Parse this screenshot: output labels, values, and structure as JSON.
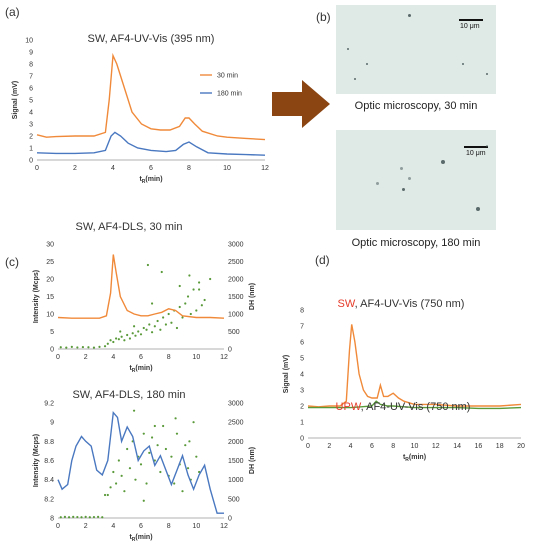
{
  "labels": {
    "a": "(a)",
    "b": "(b)",
    "c": "(c)",
    "d": "(d)"
  },
  "micro": {
    "caption30": "Optic microscopy, 30 min",
    "caption180": "Optic microscopy, 180 min",
    "scale": "10 μm"
  },
  "colors": {
    "orange": "#f08a3a",
    "blue": "#4a78c0",
    "green": "#5a9a3a",
    "red": "#e53b2a",
    "arrow": "#8b4513"
  },
  "chart_data": [
    {
      "id": "a",
      "type": "line",
      "title": "SW,  AF4-UV-Vis (395 nm)",
      "xlabel": "tR(min)",
      "ylabel": "Signal (mV)",
      "xlim": [
        0,
        12
      ],
      "ylim": [
        0,
        10
      ],
      "xticks": [
        0,
        2,
        4,
        6,
        8,
        10,
        12
      ],
      "yticks": [
        0,
        1,
        2,
        3,
        4,
        5,
        6,
        7,
        8,
        9,
        10
      ],
      "legend": "right",
      "series": [
        {
          "name": "30 min",
          "color": "#f08a3a",
          "x": [
            0,
            0.5,
            1,
            2,
            3,
            3.6,
            3.8,
            4.0,
            4.2,
            4.5,
            5.0,
            5.5,
            6,
            6.5,
            7,
            7.5,
            7.8,
            8.0,
            8.3,
            8.7,
            9.5,
            10,
            11,
            12
          ],
          "y": [
            2.1,
            1.9,
            1.95,
            2.0,
            2.0,
            2.3,
            5.0,
            8.7,
            8.0,
            6.5,
            4.0,
            3.0,
            2.6,
            2.5,
            2.5,
            2.8,
            3.5,
            3.5,
            3.0,
            2.4,
            2.0,
            1.9,
            1.8,
            1.7
          ]
        },
        {
          "name": "180 min",
          "color": "#4a78c0",
          "x": [
            0,
            1,
            2,
            3,
            3.6,
            3.9,
            4.1,
            4.4,
            4.8,
            5.3,
            6,
            6.8,
            7.3,
            7.7,
            8.0,
            8.4,
            9,
            10,
            11,
            12
          ],
          "y": [
            0.6,
            0.55,
            0.55,
            0.6,
            0.8,
            2.0,
            2.3,
            2.0,
            1.4,
            1.0,
            0.8,
            0.7,
            0.8,
            1.3,
            1.5,
            1.1,
            0.6,
            0.5,
            0.45,
            0.4
          ]
        }
      ]
    },
    {
      "id": "c1",
      "type": "line",
      "title": "SW, AF4-DLS, 30 min",
      "xlabel": "tR(min)",
      "ylabel": "Intensity (Mcps)",
      "y2label": "DH (nm)",
      "xlim": [
        0,
        12
      ],
      "ylim": [
        0,
        30
      ],
      "y2lim": [
        0,
        3000
      ],
      "xticks": [
        0,
        2,
        4,
        6,
        8,
        10,
        12
      ],
      "yticks": [
        0,
        5,
        10,
        15,
        20,
        25,
        30
      ],
      "y2ticks": [
        0,
        500,
        1000,
        1500,
        2000,
        2500,
        3000
      ],
      "intensity": {
        "color": "#f08a3a",
        "x": [
          0,
          1,
          2,
          3,
          3.5,
          3.8,
          4.0,
          4.2,
          4.5,
          5.0,
          5.5,
          6,
          6.5,
          7,
          7.5,
          8,
          8.5,
          9,
          10,
          11,
          12
        ],
        "y": [
          9,
          8.8,
          8.8,
          8.8,
          9.5,
          16,
          27,
          22,
          15,
          11,
          10,
          9.5,
          9.5,
          10,
          10.5,
          11.5,
          11,
          9.5,
          9,
          9,
          8.8
        ]
      },
      "dh": {
        "color": "#5a9a3a",
        "x": [
          0.2,
          0.6,
          1.0,
          1.4,
          1.8,
          2.2,
          2.6,
          3.0,
          3.4,
          3.6,
          3.8,
          4.0,
          4.2,
          4.4,
          4.6,
          4.8,
          5.0,
          5.2,
          5.4,
          5.6,
          5.8,
          6.0,
          6.2,
          6.4,
          6.6,
          6.8,
          7.0,
          7.2,
          7.4,
          7.6,
          7.8,
          8.0,
          8.2,
          8.4,
          8.6,
          8.8,
          9.0,
          9.2,
          9.4,
          9.6,
          9.8,
          10.0,
          10.2,
          10.4,
          10.6,
          6.5,
          7.5,
          8.8,
          9.5,
          10.2,
          11.0,
          4.5,
          5.5,
          6.8
        ],
        "y": [
          50,
          40,
          60,
          45,
          55,
          50,
          40,
          60,
          80,
          150,
          250,
          200,
          300,
          280,
          350,
          250,
          400,
          300,
          450,
          380,
          500,
          420,
          600,
          550,
          700,
          480,
          650,
          800,
          550,
          900,
          700,
          1000,
          750,
          1100,
          600,
          1200,
          900,
          1300,
          1500,
          1000,
          1700,
          1100,
          1900,
          1250,
          1400,
          2400,
          2200,
          1800,
          2100,
          1700,
          2000,
          500,
          650,
          1300
        ]
      }
    },
    {
      "id": "c2",
      "type": "line",
      "title": "SW, AF4-DLS, 180 min",
      "xlabel": "tR(min)",
      "ylabel": "Intensity (Mcps)",
      "y2label": "DH (nm)",
      "xlim": [
        0,
        12
      ],
      "ylim": [
        8,
        9.2
      ],
      "y2lim": [
        0,
        3000
      ],
      "xticks": [
        0,
        2,
        4,
        6,
        8,
        10,
        12
      ],
      "yticks": [
        8,
        8.2,
        8.4,
        8.6,
        8.8,
        9,
        9.2
      ],
      "y2ticks": [
        0,
        500,
        1000,
        1500,
        2000,
        2500,
        3000
      ],
      "intensity": {
        "color": "#4a78c0",
        "x": [
          0,
          0.3,
          0.7,
          1.0,
          1.3,
          1.7,
          2.0,
          2.4,
          2.8,
          3.2,
          3.6,
          4.0,
          4.3,
          4.6,
          5.0,
          5.4,
          5.8,
          6.2,
          6.6,
          7.0,
          7.4,
          7.8,
          8.2,
          8.6,
          9.0,
          9.4,
          9.8,
          10.2,
          10.6,
          11.0,
          11.5,
          12
        ],
        "y": [
          8.4,
          8.3,
          8.35,
          8.6,
          8.75,
          8.85,
          8.8,
          8.75,
          8.5,
          8.45,
          8.6,
          9.1,
          9.05,
          8.8,
          8.95,
          8.85,
          8.6,
          8.7,
          8.75,
          8.55,
          8.65,
          8.5,
          8.35,
          8.5,
          8.65,
          8.45,
          8.3,
          8.45,
          8.55,
          8.3,
          8.05,
          8.05
        ]
      },
      "dh": {
        "color": "#5a9a3a",
        "x": [
          0.2,
          0.5,
          0.8,
          1.1,
          1.4,
          1.7,
          2.0,
          2.3,
          2.6,
          2.9,
          3.2,
          3.4,
          3.6,
          3.8,
          4.0,
          4.2,
          4.4,
          4.6,
          4.8,
          5.0,
          5.2,
          5.4,
          5.6,
          5.8,
          6.0,
          6.2,
          6.4,
          6.6,
          6.8,
          7.0,
          7.2,
          7.4,
          7.6,
          7.8,
          8.0,
          8.2,
          8.4,
          8.6,
          8.8,
          9.0,
          9.2,
          9.4,
          9.6,
          9.8,
          10.0,
          10.2,
          5.5,
          7.0,
          8.5,
          9.5,
          6.2
        ],
        "y": [
          20,
          30,
          20,
          30,
          25,
          20,
          30,
          20,
          25,
          30,
          20,
          600,
          600,
          800,
          1200,
          900,
          1500,
          1100,
          700,
          1800,
          1300,
          2000,
          1000,
          1600,
          1400,
          2200,
          900,
          1700,
          2100,
          1500,
          1900,
          1200,
          2400,
          1800,
          1100,
          1600,
          900,
          2200,
          1400,
          700,
          1900,
          1300,
          1000,
          2500,
          1600,
          1200,
          2800,
          2400,
          2600,
          2000,
          450
        ]
      }
    },
    {
      "id": "d",
      "type": "line",
      "title_sw_prefix": "SW",
      "title_sw_rest": ", AF4-UV-Vis (750 nm)",
      "title_upw_prefix": "UPW",
      "title_upw_rest": ", AF4-UV-Vis (750 nm)",
      "xlabel": "tR(min)",
      "ylabel": "Signal (mV)",
      "xlim": [
        0,
        20
      ],
      "ylim": [
        0,
        8
      ],
      "xticks": [
        0,
        2,
        4,
        6,
        8,
        10,
        12,
        14,
        16,
        18,
        20
      ],
      "yticks": [
        0,
        1,
        2,
        3,
        4,
        5,
        6,
        7,
        8
      ],
      "series": [
        {
          "name": "SW",
          "color": "#f08a3a",
          "x": [
            0,
            1,
            2,
            3,
            3.6,
            3.9,
            4.1,
            4.4,
            4.8,
            5.2,
            5.6,
            6.0,
            6.5,
            6.8,
            7.1,
            7.5,
            8.0,
            8.5,
            9,
            10,
            12,
            14,
            16,
            18,
            20
          ],
          "y": [
            2.0,
            1.95,
            2.0,
            2.0,
            2.3,
            5.5,
            7.1,
            6.0,
            4.0,
            3.0,
            2.6,
            2.5,
            2.5,
            3.3,
            2.6,
            2.6,
            2.8,
            2.5,
            2.3,
            2.1,
            2.1,
            2.0,
            2.0,
            2.0,
            2.1
          ]
        },
        {
          "name": "UPW",
          "color": "#5a9a3a",
          "x": [
            0,
            2,
            4,
            5,
            6,
            6.4,
            6.8,
            7.5,
            8,
            9,
            10,
            12,
            14,
            16,
            18,
            20
          ],
          "y": [
            1.9,
            1.9,
            1.9,
            1.95,
            2.0,
            2.3,
            2.1,
            2.0,
            2.0,
            1.95,
            1.9,
            1.9,
            1.9,
            1.85,
            1.85,
            1.9
          ]
        }
      ]
    }
  ]
}
